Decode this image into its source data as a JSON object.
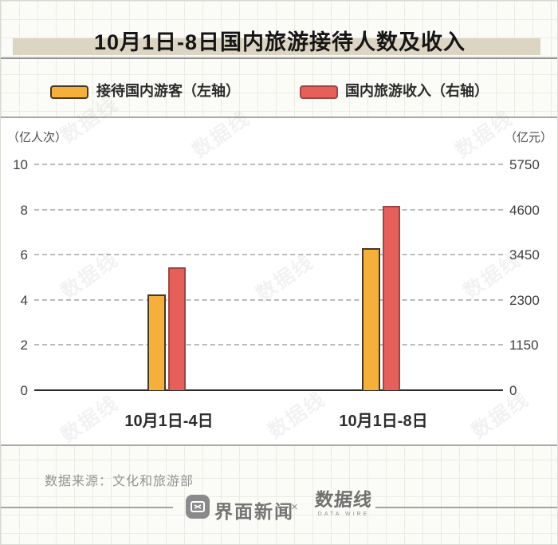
{
  "page": {
    "title": "10月1日-8日国内旅游接待人数及收入"
  },
  "legend": {
    "items": [
      {
        "label": "接待国内游客（左轴）",
        "color": "#F5B03C",
        "border": "#473927"
      },
      {
        "label": "国内旅游收入（右轴）",
        "color": "#E6605B",
        "border": "#A04541"
      }
    ]
  },
  "chart_data": {
    "type": "bar",
    "title": "10月1日-8日国内旅游接待人数及收入",
    "categories": [
      "10月1日-4日",
      "10月1日-8日"
    ],
    "series": [
      {
        "name": "接待国内游客（左轴）",
        "axis": "left",
        "unit": "亿人次",
        "values": [
          4.25,
          6.3
        ],
        "color": "#F5B03C",
        "border_color": "#473927"
      },
      {
        "name": "国内旅游收入（右轴）",
        "axis": "right",
        "unit": "亿元",
        "values": [
          3120,
          4700
        ],
        "color": "#E6605B",
        "border_color": "#A04541"
      }
    ],
    "left_axis": {
      "unit_label": "（亿人次）",
      "min": 0,
      "max": 10,
      "ticks": [
        0,
        2,
        4,
        6,
        8,
        10
      ]
    },
    "right_axis": {
      "unit_label": "（亿元）",
      "min": 0,
      "max": 5750,
      "ticks": [
        0,
        1150,
        2300,
        3450,
        4600,
        5750
      ]
    },
    "grid": "horizontal-dashed",
    "legend_position": "top"
  },
  "source": {
    "text": "数据来源：文化和旅游部"
  },
  "footer": {
    "brand_left": "界面新闻",
    "separator": "×",
    "brand_right": "数据线",
    "brand_right_sub": "DATA WIRE"
  },
  "watermark_text": "数据线"
}
